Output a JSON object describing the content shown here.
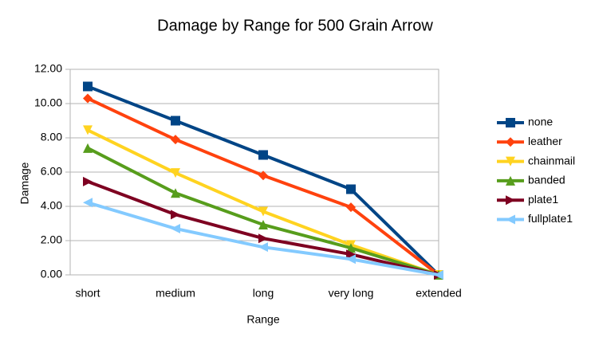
{
  "chart_data": {
    "type": "line",
    "title": "Damage by Range for 500 Grain Arrow",
    "x_label": "Range",
    "y_label": "Damage",
    "categories": [
      "short",
      "medium",
      "long",
      "very long",
      "extended"
    ],
    "series": [
      {
        "name": "none",
        "color": "#004586",
        "marker": "square",
        "values": [
          11,
          9,
          7,
          5,
          0
        ]
      },
      {
        "name": "leather",
        "color": "#ff420e",
        "marker": "diamond",
        "values": [
          10.3,
          7.9,
          5.8,
          3.95,
          0
        ]
      },
      {
        "name": "chainmail",
        "color": "#ffd320",
        "marker": "triangle-down",
        "values": [
          8.45,
          5.95,
          3.7,
          1.75,
          0
        ]
      },
      {
        "name": "banded",
        "color": "#579d1c",
        "marker": "triangle-up",
        "values": [
          7.4,
          4.78,
          2.93,
          1.57,
          0
        ]
      },
      {
        "name": "plate1",
        "color": "#7e0021",
        "marker": "triangle-right",
        "values": [
          5.45,
          3.52,
          2.13,
          1.2,
          0
        ]
      },
      {
        "name": "fullplate1",
        "color": "#83caff",
        "marker": "triangle-left",
        "values": [
          4.22,
          2.7,
          1.62,
          0.92,
          0
        ]
      }
    ],
    "ylim": [
      0,
      12
    ],
    "yticks": [
      {
        "value": 0,
        "label": "0.00"
      },
      {
        "value": 2,
        "label": "2.00"
      },
      {
        "value": 4,
        "label": "4.00"
      },
      {
        "value": 6,
        "label": "6.00"
      },
      {
        "value": 8,
        "label": "8.00"
      },
      {
        "value": 10,
        "label": "10.00"
      },
      {
        "value": 12,
        "label": "12.00"
      }
    ],
    "grid": true,
    "legend": "right"
  }
}
